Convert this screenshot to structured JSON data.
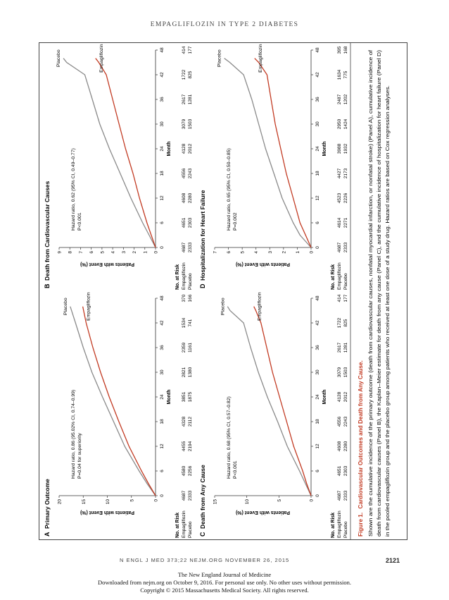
{
  "running_head": "EMPAGLIFLOZIN IN TYPE 2 DIABETES",
  "footer": {
    "journal_ref": "N ENGL J MED 373;22   NEJM.ORG   NOVEMBER 26, 2015",
    "page_number": "2121"
  },
  "notice": {
    "line1": "The New England Journal of Medicine",
    "line2": "Downloaded from nejm.org on October 9, 2016. For personal use only. No other uses without permission.",
    "line3": "Copyright © 2015 Massachusetts Medical Society. All rights reserved."
  },
  "colors": {
    "empagliflozin": "#c23a22",
    "placebo": "#8a8a8a",
    "caption_title": "#c23a22"
  },
  "caption": {
    "label": "Figure 1.",
    "title": "Cardiovascular Outcomes and Death from Any Cause.",
    "lines": [
      "Shown are the cumulative incidence of the primary outcome (death from cardiovascular causes, nonfatal myocardial infarction, or nonfatal stroke) (Panel A), cumulative incidence of",
      "death from cardiovascular causes (Panel B), the Kaplan–Meier estimate for death from any cause (Panel C), and the cumulative incidence of hospitalization for heart failure (Panel D)",
      "in the pooled empagliflozin group and the placebo group among patients who received at least one dose of a study drug. Hazard ratios are based on Cox regression analyses."
    ]
  },
  "chart_data": [
    {
      "type": "line",
      "panel": "A",
      "title": "Primary Outcome",
      "xlabel": "Month",
      "ylabel": "Patients with Event (%)",
      "xlim": [
        0,
        48
      ],
      "ylim": [
        0,
        20
      ],
      "xticks": [
        "0",
        "6",
        "12",
        "18",
        "24",
        "30",
        "36",
        "42",
        "48"
      ],
      "yticks": [
        "0",
        "5",
        "10",
        "15",
        "20"
      ],
      "annotation": [
        "Hazard ratio, 0.86 (95.02% CI, 0.74–0.99)",
        "P=0.04 for superiority"
      ],
      "series": [
        {
          "name": "Placebo",
          "x": [
            0,
            3,
            6,
            12,
            18,
            24,
            30,
            36,
            42,
            46
          ],
          "values": [
            0,
            1.8,
            3.4,
            6.4,
            8.7,
            11.0,
            13.2,
            15.0,
            16.6,
            17.7
          ]
        },
        {
          "name": "Empagliflozin",
          "x": [
            0,
            3,
            6,
            12,
            18,
            24,
            30,
            36,
            42,
            46
          ],
          "values": [
            0,
            1.5,
            2.9,
            5.5,
            7.6,
            9.6,
            11.4,
            13.0,
            14.4,
            15.1
          ]
        }
      ],
      "at_risk": {
        "header": "No. at Risk",
        "rows": [
          {
            "label": "Empagliflozin",
            "values": [
              "4687",
              "4580",
              "4455",
              "4328",
              "3851",
              "2821",
              "2359",
              "1534",
              "370"
            ]
          },
          {
            "label": "Placebo",
            "values": [
              "2333",
              "2256",
              "2194",
              "2112",
              "1875",
              "1380",
              "1161",
              "741",
              "166"
            ]
          }
        ]
      }
    },
    {
      "type": "line",
      "panel": "B",
      "title": "Death from Cardiovascular Causes",
      "xlabel": "Month",
      "ylabel": "Patients with Event (%)",
      "xlim": [
        0,
        48
      ],
      "ylim": [
        0,
        9
      ],
      "xticks": [
        "0",
        "6",
        "12",
        "18",
        "24",
        "30",
        "36",
        "42",
        "48"
      ],
      "yticks": [
        "0",
        "1",
        "2",
        "3",
        "4",
        "5",
        "6",
        "7",
        "8",
        "9"
      ],
      "annotation": [
        "Hazard ratio, 0.62 (95% CI, 0.49–0.77)",
        "P<0.001"
      ],
      "series": [
        {
          "name": "Placebo",
          "x": [
            0,
            3,
            6,
            12,
            18,
            24,
            30,
            36,
            42,
            45,
            46
          ],
          "values": [
            0,
            0.6,
            1.2,
            2.3,
            3.3,
            4.3,
            5.2,
            5.9,
            6.6,
            8.3,
            8.6
          ]
        },
        {
          "name": "Empagliflozin",
          "x": [
            0,
            3,
            6,
            12,
            18,
            24,
            30,
            36,
            42,
            45,
            46
          ],
          "values": [
            0,
            0.4,
            0.8,
            1.5,
            2.1,
            2.8,
            3.4,
            4.0,
            4.6,
            5.3,
            5.6
          ]
        }
      ],
      "at_risk": {
        "header": "No. at Risk",
        "rows": [
          {
            "label": "Empagliflozin",
            "values": [
              "4687",
              "4651",
              "4608",
              "4556",
              "4128",
              "3079",
              "2617",
              "1722",
              "414"
            ]
          },
          {
            "label": "Placebo",
            "values": [
              "2333",
              "2303",
              "2280",
              "2243",
              "2012",
              "1503",
              "1281",
              "825",
              "177"
            ]
          }
        ]
      }
    },
    {
      "type": "line",
      "panel": "C",
      "title": "Death from Any Cause",
      "xlabel": "Month",
      "ylabel": "Patients with Event (%)",
      "xlim": [
        0,
        48
      ],
      "ylim": [
        0,
        15
      ],
      "xticks": [
        "0",
        "6",
        "12",
        "18",
        "24",
        "30",
        "36",
        "42",
        "48"
      ],
      "yticks": [
        "0",
        "5",
        "10",
        "15"
      ],
      "annotation": [
        "Hazard ratio, 0.68 (95% CI, 0.57–0.82)",
        "P<0.001"
      ],
      "series": [
        {
          "name": "Placebo",
          "x": [
            0,
            3,
            6,
            12,
            18,
            24,
            30,
            36,
            42,
            45,
            46
          ],
          "values": [
            0,
            0.9,
            1.8,
            3.7,
            5.2,
            6.8,
            8.2,
            9.4,
            10.5,
            12.6,
            13.0
          ]
        },
        {
          "name": "Empagliflozin",
          "x": [
            0,
            3,
            6,
            12,
            18,
            24,
            30,
            36,
            42,
            45,
            46
          ],
          "values": [
            0,
            0.7,
            1.3,
            2.7,
            3.8,
            4.9,
            6.0,
            6.9,
            7.8,
            8.6,
            8.9
          ]
        }
      ],
      "at_risk": {
        "header": "No. at Risk",
        "rows": [
          {
            "label": "Empagliflozin",
            "values": [
              "4687",
              "4651",
              "4608",
              "4556",
              "4128",
              "3079",
              "2617",
              "1722",
              "414"
            ]
          },
          {
            "label": "Placebo",
            "values": [
              "2333",
              "2303",
              "2280",
              "2243",
              "2012",
              "1503",
              "1281",
              "825",
              "177"
            ]
          }
        ]
      }
    },
    {
      "type": "line",
      "panel": "D",
      "title": "Hospitalization for Heart Failure",
      "xlabel": "Month",
      "ylabel": "Patients with Event (%)",
      "xlim": [
        0,
        48
      ],
      "ylim": [
        0,
        7
      ],
      "xticks": [
        "0",
        "6",
        "12",
        "18",
        "24",
        "30",
        "36",
        "42",
        "48"
      ],
      "yticks": [
        "0",
        "1",
        "2",
        "3",
        "4",
        "5",
        "6",
        "7"
      ],
      "annotation": [
        "Hazard ratio, 0.65 (95% CI, 0.50–0.85)",
        "P=0.002"
      ],
      "series": [
        {
          "name": "Placebo",
          "x": [
            0,
            3,
            6,
            12,
            18,
            24,
            30,
            36,
            42,
            45,
            46
          ],
          "values": [
            0,
            0.8,
            1.3,
            2.1,
            2.7,
            3.3,
            3.8,
            4.3,
            4.9,
            5.9,
            6.3
          ]
        },
        {
          "name": "Empagliflozin",
          "x": [
            0,
            3,
            6,
            12,
            18,
            24,
            30,
            36,
            42,
            45,
            46
          ],
          "values": [
            0,
            0.4,
            0.8,
            1.3,
            1.8,
            2.2,
            2.6,
            2.9,
            3.2,
            3.8,
            4.1
          ]
        }
      ],
      "at_risk": {
        "header": "No. at Risk",
        "rows": [
          {
            "label": "Empagliflozin",
            "values": [
              "4687",
              "4614",
              "4523",
              "4427",
              "3988",
              "2950",
              "2487",
              "1634",
              "395"
            ]
          },
          {
            "label": "Placebo",
            "values": [
              "2333",
              "2271",
              "2226",
              "2173",
              "1932",
              "1424",
              "1202",
              "775",
              "168"
            ]
          }
        ]
      }
    }
  ]
}
